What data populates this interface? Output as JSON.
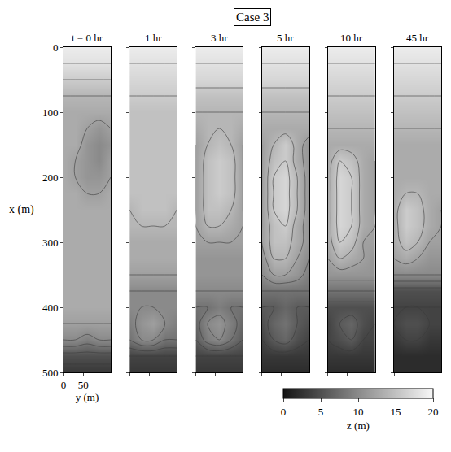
{
  "chart_data": {
    "type": "contour",
    "title": "Case 3",
    "x_label": "x (m)",
    "y_label": "y (m)",
    "xlim": [
      0,
      500
    ],
    "xticks": [
      0,
      100,
      200,
      300,
      400,
      500
    ],
    "ylim": [
      0,
      120
    ],
    "yticks": [
      0,
      50
    ],
    "x": [
      0,
      25,
      50,
      75,
      100,
      125,
      150,
      175,
      200,
      225,
      250,
      275,
      300,
      325,
      350,
      375,
      400,
      425,
      450,
      475,
      500
    ],
    "y": [
      0,
      30,
      60,
      90,
      120
    ],
    "colorbar": {
      "title": "z (m)",
      "range": [
        0,
        20
      ],
      "ticks": [
        0,
        5,
        10,
        15,
        20
      ]
    },
    "panels": [
      {
        "title": "t = 0 hr",
        "z": [
          [
            19,
            19,
            19,
            19,
            19
          ],
          [
            18,
            18,
            18,
            18,
            18
          ],
          [
            16,
            16,
            16,
            16,
            16
          ],
          [
            14,
            14,
            14,
            14,
            14
          ],
          [
            13,
            13,
            13,
            13,
            13
          ],
          [
            13,
            13,
            12,
            11,
            12
          ],
          [
            13,
            13,
            11,
            10,
            11
          ],
          [
            13,
            12,
            11,
            10,
            12
          ],
          [
            13,
            12,
            11,
            11,
            12
          ],
          [
            13,
            13,
            12,
            12,
            13
          ],
          [
            13,
            13,
            13,
            13,
            13
          ],
          [
            13,
            13,
            13,
            13,
            13
          ],
          [
            13,
            13,
            13,
            13,
            13
          ],
          [
            13,
            13,
            13,
            13,
            13
          ],
          [
            13,
            13,
            13,
            13,
            13
          ],
          [
            13,
            13,
            13,
            13,
            13
          ],
          [
            13,
            13,
            13,
            13,
            13
          ],
          [
            12,
            12,
            12,
            12,
            12
          ],
          [
            10,
            10,
            9,
            10,
            10
          ],
          [
            5,
            5,
            5,
            5,
            5
          ],
          [
            3,
            3,
            3,
            3,
            3
          ]
        ]
      },
      {
        "title": "1 hr",
        "z": [
          [
            19,
            19,
            19,
            19,
            19
          ],
          [
            18,
            18,
            18,
            18,
            18
          ],
          [
            17,
            17,
            17,
            17,
            17
          ],
          [
            16,
            16,
            16,
            16,
            16
          ],
          [
            15,
            15,
            15,
            15,
            15
          ],
          [
            15,
            15,
            15,
            15,
            15
          ],
          [
            15,
            15,
            15,
            15,
            15
          ],
          [
            15,
            15,
            15,
            15,
            15
          ],
          [
            15,
            15,
            15,
            15,
            15
          ],
          [
            15,
            15,
            15,
            15,
            15
          ],
          [
            14,
            15,
            15,
            15,
            14
          ],
          [
            14,
            14,
            14,
            14,
            14
          ],
          [
            13,
            13,
            13,
            13,
            13
          ],
          [
            13,
            13,
            13,
            13,
            13
          ],
          [
            12,
            12,
            12,
            12,
            12
          ],
          [
            10,
            10,
            10,
            10,
            10
          ],
          [
            10,
            10,
            10,
            10,
            10
          ],
          [
            9,
            11,
            12,
            10,
            9
          ],
          [
            8,
            10,
            10,
            8,
            8
          ],
          [
            4,
            4,
            4,
            4,
            4
          ],
          [
            3,
            3,
            3,
            3,
            3
          ]
        ]
      },
      {
        "title": "3 hr",
        "z": [
          [
            19,
            19,
            19,
            19,
            19
          ],
          [
            18,
            18,
            18,
            18,
            18
          ],
          [
            17,
            17,
            17,
            17,
            17
          ],
          [
            15,
            15,
            15,
            15,
            15
          ],
          [
            14,
            14,
            14,
            14,
            14
          ],
          [
            13,
            14,
            14,
            14,
            13
          ],
          [
            12,
            14,
            15,
            14,
            12
          ],
          [
            12,
            15,
            16,
            15,
            12
          ],
          [
            12,
            15,
            16,
            15,
            12
          ],
          [
            12,
            15,
            16,
            15,
            12
          ],
          [
            12,
            15,
            15,
            14,
            12
          ],
          [
            12,
            14,
            14,
            13,
            12
          ],
          [
            12,
            12,
            12,
            12,
            12
          ],
          [
            11,
            11,
            11,
            11,
            11
          ],
          [
            11,
            11,
            11,
            11,
            11
          ],
          [
            10,
            10,
            10,
            10,
            10
          ],
          [
            8,
            8,
            9,
            8,
            8
          ],
          [
            7,
            10,
            11,
            9,
            7
          ],
          [
            6,
            9,
            10,
            8,
            6
          ],
          [
            4,
            4,
            4,
            4,
            4
          ],
          [
            3,
            3,
            3,
            3,
            3
          ]
        ]
      },
      {
        "title": "5 hr",
        "z": [
          [
            19,
            19,
            19,
            19,
            19
          ],
          [
            18,
            18,
            18,
            18,
            18
          ],
          [
            17,
            17,
            17,
            17,
            17
          ],
          [
            15,
            15,
            15,
            15,
            15
          ],
          [
            14,
            14,
            14,
            14,
            14
          ],
          [
            13,
            13,
            13,
            13,
            13
          ],
          [
            12,
            14,
            16,
            13,
            11
          ],
          [
            12,
            15,
            16,
            13,
            11
          ],
          [
            12,
            16,
            17,
            14,
            11
          ],
          [
            12,
            16,
            17,
            14,
            11
          ],
          [
            12,
            16,
            17,
            14,
            11
          ],
          [
            12,
            15,
            16,
            13,
            11
          ],
          [
            12,
            15,
            15,
            13,
            11
          ],
          [
            11,
            14,
            14,
            12,
            10
          ],
          [
            10,
            12,
            12,
            11,
            9
          ],
          [
            8,
            8,
            8,
            8,
            8
          ],
          [
            6,
            6,
            7,
            6,
            6
          ],
          [
            5,
            7,
            8,
            6,
            5
          ],
          [
            4,
            6,
            7,
            5,
            4
          ],
          [
            3,
            3,
            3,
            3,
            3
          ],
          [
            2,
            2,
            2,
            2,
            2
          ]
        ]
      },
      {
        "title": "10 hr",
        "z": [
          [
            19,
            19,
            19,
            19,
            19
          ],
          [
            18,
            18,
            18,
            18,
            18
          ],
          [
            17,
            17,
            17,
            17,
            17
          ],
          [
            16,
            16,
            16,
            16,
            16
          ],
          [
            15,
            15,
            15,
            15,
            15
          ],
          [
            14,
            14,
            14,
            14,
            14
          ],
          [
            13,
            13,
            13,
            13,
            13
          ],
          [
            13,
            16,
            15,
            13,
            12
          ],
          [
            13,
            17,
            16,
            13,
            12
          ],
          [
            13,
            17,
            16,
            13,
            12
          ],
          [
            13,
            17,
            16,
            13,
            12
          ],
          [
            13,
            17,
            16,
            13,
            12
          ],
          [
            13,
            16,
            15,
            12,
            12
          ],
          [
            12,
            14,
            13,
            12,
            11
          ],
          [
            11,
            11,
            11,
            11,
            11
          ],
          [
            8,
            8,
            8,
            8,
            8
          ],
          [
            5,
            5,
            5,
            5,
            5
          ],
          [
            4,
            6,
            7,
            5,
            4
          ],
          [
            4,
            5,
            6,
            4,
            4
          ],
          [
            3,
            3,
            3,
            3,
            3
          ],
          [
            2,
            2,
            2,
            2,
            2
          ]
        ]
      },
      {
        "title": "45 hr",
        "z": [
          [
            19,
            19,
            19,
            19,
            19
          ],
          [
            18,
            18,
            18,
            18,
            18
          ],
          [
            17,
            17,
            17,
            17,
            17
          ],
          [
            16,
            16,
            16,
            16,
            16
          ],
          [
            15,
            15,
            15,
            15,
            15
          ],
          [
            14,
            14,
            14,
            14,
            14
          ],
          [
            13,
            13,
            13,
            13,
            13
          ],
          [
            13,
            13,
            13,
            13,
            13
          ],
          [
            13,
            13,
            13,
            13,
            13
          ],
          [
            13,
            14,
            14,
            13,
            13
          ],
          [
            13,
            16,
            15,
            13,
            12
          ],
          [
            13,
            16,
            15,
            13,
            12
          ],
          [
            13,
            15,
            14,
            12,
            12
          ],
          [
            12,
            13,
            12,
            11,
            11
          ],
          [
            10,
            10,
            10,
            10,
            10
          ],
          [
            5,
            5,
            5,
            5,
            5
          ],
          [
            4,
            4,
            4,
            4,
            4
          ],
          [
            4,
            5,
            5,
            4,
            4
          ],
          [
            3,
            4,
            4,
            3,
            3
          ],
          [
            2,
            2,
            2,
            2,
            2
          ],
          [
            2,
            2,
            2,
            2,
            2
          ]
        ]
      }
    ]
  }
}
